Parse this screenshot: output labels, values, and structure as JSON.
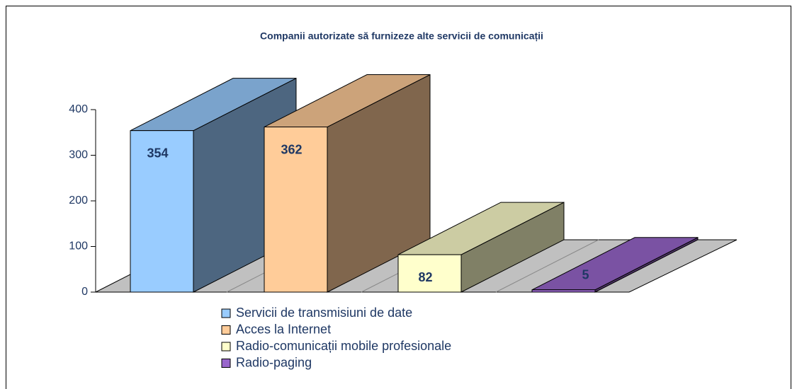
{
  "chart_data": {
    "type": "bar3d",
    "title": "Companii autorizate să furnizeze alte servicii de comunicații",
    "series": [
      {
        "name": "Servicii de transmisiuni de date",
        "color": "#99ccff",
        "values": [
          354
        ]
      },
      {
        "name": "Acces la Internet",
        "color": "#ffcc99",
        "values": [
          362
        ]
      },
      {
        "name": "Radio-comunicații mobile profesionale",
        "color": "#ffffcc",
        "values": [
          82
        ]
      },
      {
        "name": "Radio-paging",
        "color": "#9966cc",
        "values": [
          5
        ]
      }
    ],
    "ylim": [
      0,
      400
    ],
    "yticks": [
      0,
      100,
      200,
      300,
      400
    ]
  }
}
